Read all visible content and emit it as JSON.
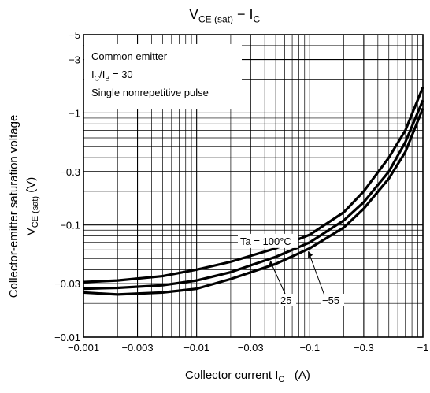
{
  "chart_data": {
    "type": "line",
    "title_main": "V",
    "title_sub1": "CE (sat)",
    "title_mid": " − I",
    "title_sub2": "C",
    "xlabel": "Collector current  I",
    "xlabel_sub": "C",
    "xlabel_unit": "(A)",
    "ylabel_line1": "Collector-emitter saturation voltage",
    "ylabel_line2_main": "V",
    "ylabel_line2_sub": "CE (sat)",
    "ylabel_line2_unit": "(V)",
    "x_scale": "log",
    "y_scale": "log",
    "xlim": [
      -0.001,
      -1
    ],
    "ylim": [
      -0.01,
      -5
    ],
    "x_ticks": [
      {
        "value": -0.001,
        "label": "−0.001"
      },
      {
        "value": -0.003,
        "label": "−0.003"
      },
      {
        "value": -0.01,
        "label": "−0.01"
      },
      {
        "value": -0.03,
        "label": "−0.03"
      },
      {
        "value": -0.1,
        "label": "−0.1"
      },
      {
        "value": -0.3,
        "label": "−0.3"
      },
      {
        "value": -1,
        "label": "−1"
      }
    ],
    "y_ticks": [
      {
        "value": -0.01,
        "label": "−0.01"
      },
      {
        "value": -0.03,
        "label": "−0.03"
      },
      {
        "value": -0.1,
        "label": "−0.1"
      },
      {
        "value": -0.3,
        "label": "−0.3"
      },
      {
        "value": -1,
        "label": "−1"
      },
      {
        "value": -3,
        "label": "−3"
      },
      {
        "value": -5,
        "label": "−5"
      }
    ],
    "grid": true,
    "notes": [
      "Common emitter",
      "I",
      "C",
      "/I",
      "B",
      " = 30",
      "Single nonrepetitive pulse"
    ],
    "series": [
      {
        "name": "Ta = 100°C",
        "x": [
          -0.001,
          -0.002,
          -0.005,
          -0.01,
          -0.02,
          -0.05,
          -0.1,
          -0.2,
          -0.3,
          -0.5,
          -0.7,
          -1.0
        ],
        "y": [
          -0.031,
          -0.032,
          -0.035,
          -0.04,
          -0.047,
          -0.062,
          -0.082,
          -0.13,
          -0.2,
          -0.4,
          -0.7,
          -1.7
        ]
      },
      {
        "name": "25",
        "x": [
          -0.001,
          -0.002,
          -0.005,
          -0.01,
          -0.02,
          -0.05,
          -0.1,
          -0.2,
          -0.3,
          -0.5,
          -0.7,
          -1.0
        ],
        "y": [
          -0.027,
          -0.0275,
          -0.029,
          -0.032,
          -0.038,
          -0.052,
          -0.07,
          -0.11,
          -0.16,
          -0.3,
          -0.55,
          -1.3
        ]
      },
      {
        "name": "−55",
        "x": [
          -0.001,
          -0.002,
          -0.005,
          -0.01,
          -0.02,
          -0.05,
          -0.1,
          -0.2,
          -0.3,
          -0.5,
          -0.7,
          -1.0
        ],
        "y": [
          -0.025,
          -0.024,
          -0.025,
          -0.027,
          -0.033,
          -0.045,
          -0.062,
          -0.095,
          -0.14,
          -0.26,
          -0.45,
          -1.1
        ]
      }
    ]
  }
}
